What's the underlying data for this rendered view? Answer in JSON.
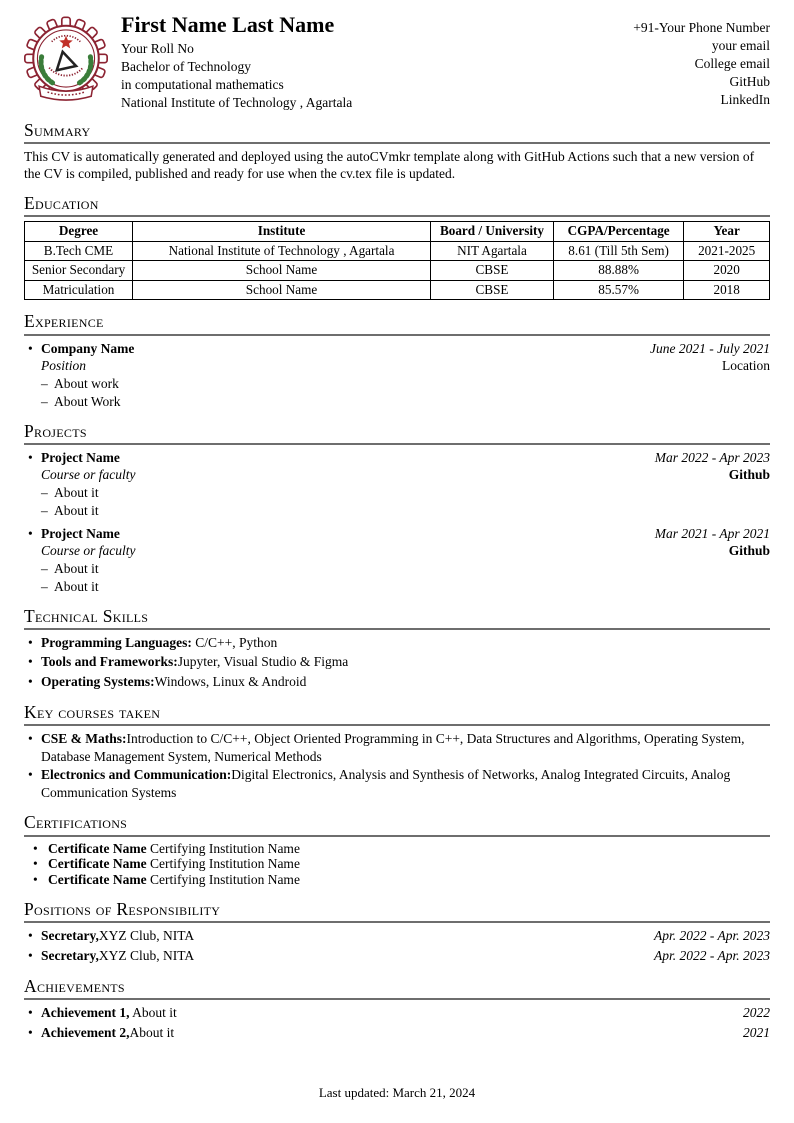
{
  "ui": {
    "bullet": "•",
    "dash": "–"
  },
  "header": {
    "name": "First Name Last Name",
    "roll": "Your Roll No",
    "degree": "Bachelor of Technology",
    "branch": "in computational mathematics",
    "institute": "National Institute of Technology , Agartala",
    "contact": {
      "phone": "+91-Your Phone Number",
      "email": "your email",
      "college_email": "College email",
      "github": "GitHub",
      "linkedin": "LinkedIn"
    }
  },
  "summary": {
    "title": "Summary",
    "text": "This CV is automatically generated and deployed using the autoCVmkr template along with GitHub Actions such that a new version of the CV is compiled, published and ready for use when the cv.tex file is updated."
  },
  "education": {
    "title": "Education",
    "headers": [
      "Degree",
      "Institute",
      "Board / University",
      "CGPA/Percentage",
      "Year"
    ],
    "rows": [
      [
        "B.Tech CME",
        "National Institute of Technology , Agartala",
        "NIT Agartala",
        "8.61 (Till 5th Sem)",
        "2021-2025"
      ],
      [
        "Senior Secondary",
        "School Name",
        "CBSE",
        "88.88%",
        "2020"
      ],
      [
        "Matriculation",
        "School Name",
        "CBSE",
        "85.57%",
        "2018"
      ]
    ]
  },
  "experience": {
    "title": "Experience",
    "entries": [
      {
        "company": "Company Name",
        "dates": "June 2021 - July 2021",
        "position": "Position",
        "location": "Location",
        "points": [
          "About work",
          "About Work"
        ]
      }
    ]
  },
  "projects": {
    "title": "Projects",
    "entries": [
      {
        "name": "Project Name",
        "dates": "Mar 2022 - Apr 2023",
        "course": "Course or faculty",
        "link": "Github",
        "points": [
          "About it",
          "About it"
        ]
      },
      {
        "name": "Project Name",
        "dates": "Mar 2021 - Apr 2021",
        "course": "Course or faculty",
        "link": "Github",
        "points": [
          "About it",
          "About it"
        ]
      }
    ]
  },
  "skills": {
    "title": "Technical Skills",
    "items": [
      {
        "label": "Programming Languages:",
        "value": " C/C++, Python"
      },
      {
        "label": "Tools and Frameworks:",
        "value": "Jupyter, Visual Studio & Figma"
      },
      {
        "label": "Operating Systems:",
        "value": "Windows, Linux & Android"
      }
    ]
  },
  "courses": {
    "title": "Key courses taken",
    "items": [
      {
        "label": "CSE & Maths:",
        "value": "Introduction to C/C++, Object Oriented Programming in C++, Data Structures and Algorithms, Operating System, Database Management System, Numerical Methods"
      },
      {
        "label": "Electronics and Communication:",
        "value": "Digital Electronics, Analysis and Synthesis of Networks, Analog Integrated Circuits, Analog Communication Systems"
      }
    ]
  },
  "certifications": {
    "title": "Certifications",
    "items": [
      {
        "name": "Certificate Name",
        "issuer": "Certifying Institution Name"
      },
      {
        "name": "Certificate Name",
        "issuer": "Certifying Institution Name"
      },
      {
        "name": "Certificate Name",
        "issuer": "Certifying Institution Name"
      }
    ]
  },
  "positions": {
    "title": "Positions of Responsibility",
    "items": [
      {
        "role": "Secretary,",
        "org": "XYZ Club, NITA",
        "dates": "Apr. 2022 - Apr. 2023"
      },
      {
        "role": "Secretary,",
        "org": "XYZ Club, NITA",
        "dates": "Apr. 2022 - Apr. 2023"
      }
    ]
  },
  "achievements": {
    "title": "Achievements",
    "items": [
      {
        "name": "Achievement 1,",
        "detail": " About it",
        "year": "2022"
      },
      {
        "name": "Achievement 2,",
        "detail": "About it",
        "year": "2021"
      }
    ]
  },
  "footer": {
    "text": "Last updated: March 21, 2024"
  },
  "colors": {
    "maroon": "#8c2332",
    "green": "#3a7d3a",
    "red": "#c03028",
    "rule_gray": "#6e6e6e"
  }
}
